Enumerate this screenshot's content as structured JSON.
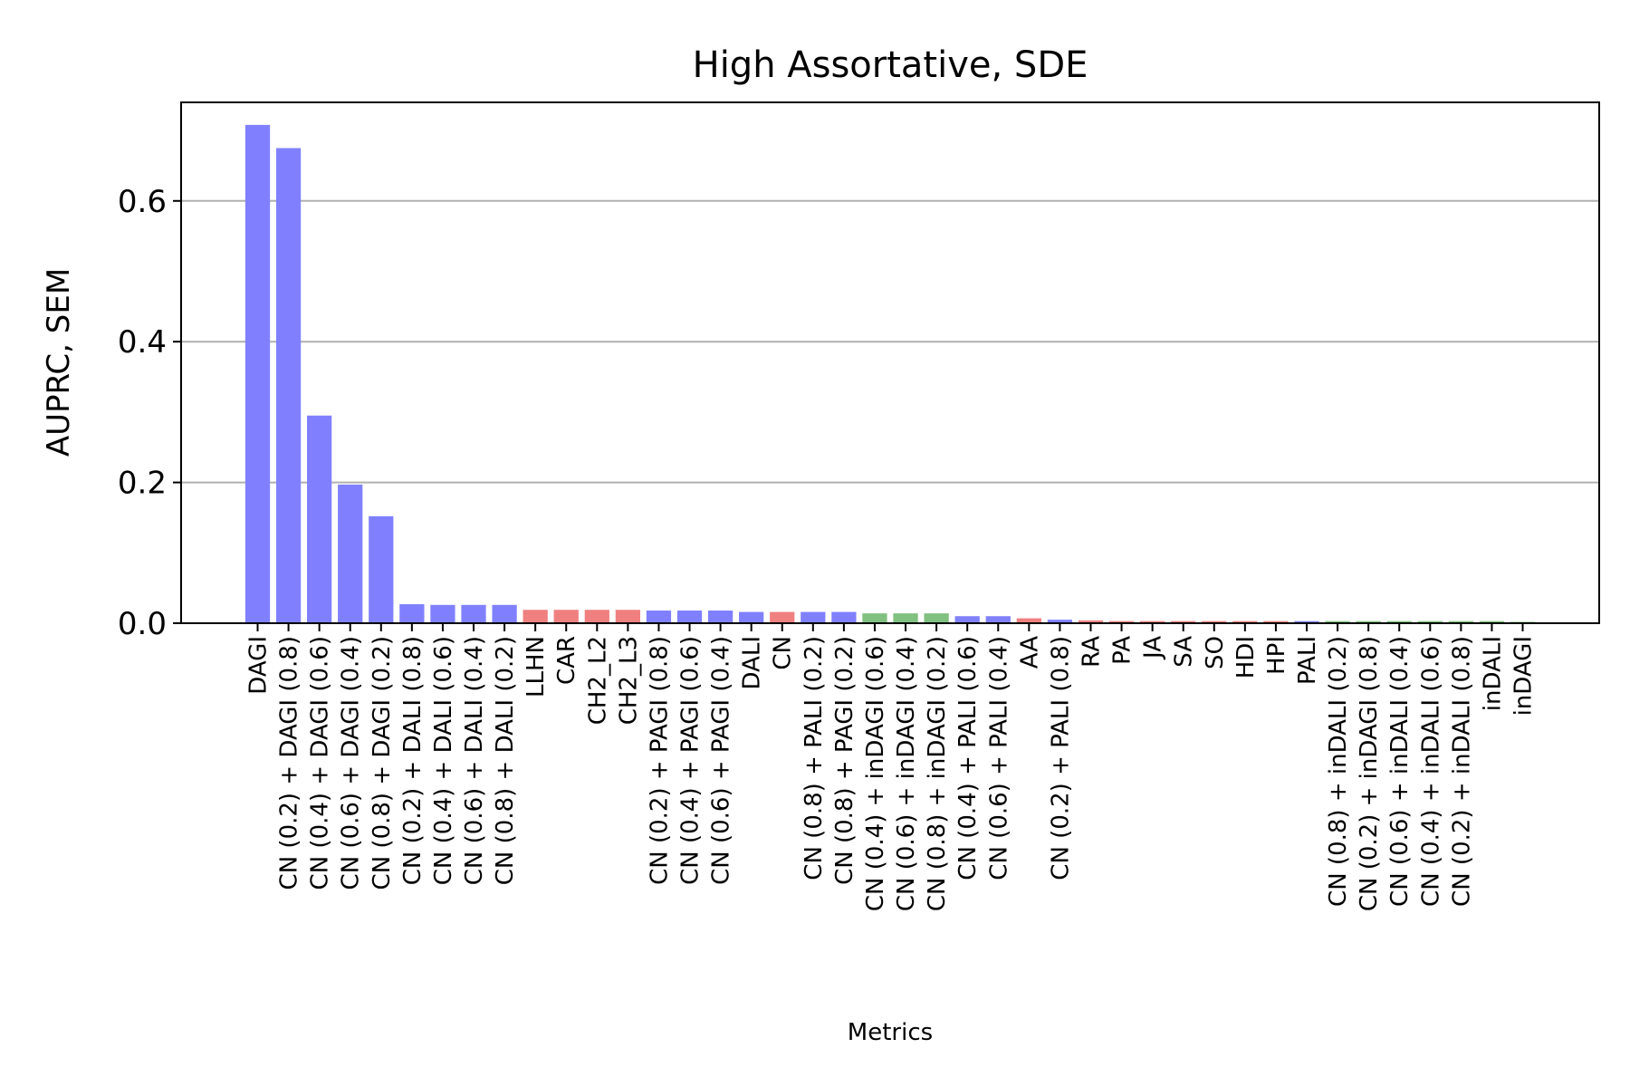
{
  "chart_data": {
    "type": "bar",
    "title": "High Assortative, SDE",
    "xlabel": "Metrics",
    "ylabel": "AUPRC, SEM",
    "ylim": [
      0,
      0.74
    ],
    "yticks": [
      "0.0",
      "0.2",
      "0.4",
      "0.6"
    ],
    "ytick_values": [
      0.0,
      0.2,
      0.4,
      0.6
    ],
    "grid": "horizontal",
    "colors": {
      "blue": "#8080ff",
      "red": "#f08080",
      "green": "#80c080"
    },
    "categories": [
      "DAGI",
      "CN (0.2) + DAGI (0.8)",
      "CN (0.4) + DAGI (0.6)",
      "CN (0.6) + DAGI (0.4)",
      "CN (0.8) + DAGI (0.2)",
      "CN (0.2) + DALI (0.8)",
      "CN (0.4) + DALI (0.6)",
      "CN (0.6) + DALI (0.4)",
      "CN (0.8) + DALI (0.2)",
      "LLHN",
      "CAR",
      "CH2_L2",
      "CH2_L3",
      "CN (0.2) + PAGI (0.8)",
      "CN (0.4) + PAGI (0.6)",
      "CN (0.6) + PAGI (0.4)",
      "DALI",
      "CN",
      "CN (0.8) + PALI (0.2)",
      "CN (0.8) + PAGI (0.2)",
      "CN (0.4) + inDAGI (0.6)",
      "CN (0.6) + inDAGI (0.4)",
      "CN (0.8) + inDAGI (0.2)",
      "CN (0.4) + PALI (0.6)",
      "CN (0.6) + PALI (0.4)",
      "AA",
      "CN (0.2) + PALI (0.8)",
      "RA",
      "PA",
      "JA",
      "SA",
      "SO",
      "HDI",
      "HPI",
      "PALI",
      "CN (0.8) + inDALI (0.2)",
      "CN (0.2) + inDAGI (0.8)",
      "CN (0.6) + inDALI (0.4)",
      "CN (0.4) + inDALI (0.6)",
      "CN (0.2) + inDALI (0.8)",
      "inDALI",
      "inDAGI"
    ],
    "values": [
      0.708,
      0.675,
      0.295,
      0.197,
      0.152,
      0.027,
      0.026,
      0.026,
      0.026,
      0.019,
      0.019,
      0.019,
      0.019,
      0.018,
      0.018,
      0.018,
      0.016,
      0.016,
      0.016,
      0.016,
      0.014,
      0.014,
      0.014,
      0.01,
      0.01,
      0.007,
      0.005,
      0.004,
      0.003,
      0.003,
      0.003,
      0.003,
      0.003,
      0.003,
      0.003,
      0.003,
      0.003,
      0.003,
      0.003,
      0.003,
      0.003,
      0.002
    ],
    "bar_colors": [
      "blue",
      "blue",
      "blue",
      "blue",
      "blue",
      "blue",
      "blue",
      "blue",
      "blue",
      "red",
      "red",
      "red",
      "red",
      "blue",
      "blue",
      "blue",
      "blue",
      "red",
      "blue",
      "blue",
      "green",
      "green",
      "green",
      "blue",
      "blue",
      "red",
      "blue",
      "red",
      "red",
      "red",
      "red",
      "red",
      "red",
      "red",
      "blue",
      "green",
      "green",
      "green",
      "green",
      "green",
      "green",
      "green"
    ]
  }
}
